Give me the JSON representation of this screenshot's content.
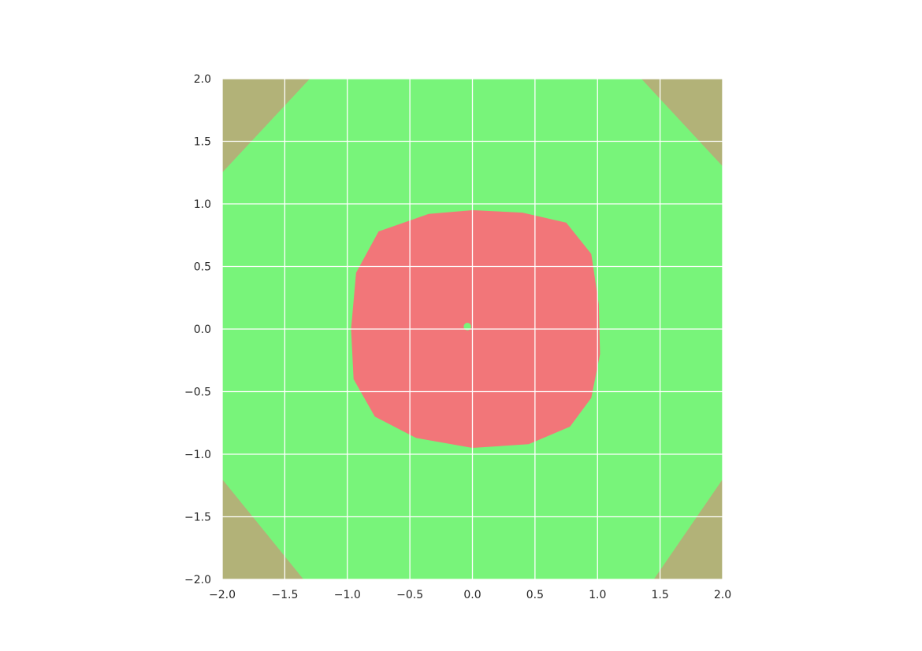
{
  "chart_data": {
    "type": "heatmap",
    "title": "",
    "xlabel": "",
    "ylabel": "",
    "xlim": [
      -2.0,
      2.0
    ],
    "ylim": [
      -2.0,
      2.0
    ],
    "grid": true,
    "x_ticks": [
      -2.0,
      -1.5,
      -1.0,
      -0.5,
      0.0,
      0.5,
      1.0,
      1.5,
      2.0
    ],
    "y_ticks": [
      -2.0,
      -1.5,
      -1.0,
      -0.5,
      0.0,
      0.5,
      1.0,
      1.5,
      2.0
    ],
    "x_tick_labels": [
      "−2.0",
      "−1.5",
      "−1.0",
      "−0.5",
      "0.0",
      "0.5",
      "1.0",
      "1.5",
      "2.0"
    ],
    "y_tick_labels": [
      "−2.0",
      "−1.5",
      "−1.0",
      "−0.5",
      "0.0",
      "0.5",
      "1.0",
      "1.5",
      "2.0"
    ],
    "regions": [
      {
        "color": "#b2b278",
        "description_points": "outer corners",
        "boundary_inner_radius_inf_norm_diag": [
          1.15,
          1.15
        ]
      },
      {
        "color": "#78f47a",
        "boundary": [
          [
            -1.3,
            2.0
          ],
          [
            1.35,
            2.0
          ],
          [
            2.0,
            1.3
          ],
          [
            2.0,
            -1.2
          ],
          [
            1.45,
            -2.0
          ],
          [
            -1.35,
            -2.0
          ],
          [
            -2.0,
            -1.2
          ],
          [
            -2.0,
            1.25
          ]
        ]
      },
      {
        "color": "#f27679",
        "boundary": [
          [
            0.0,
            0.95
          ],
          [
            0.4,
            0.93
          ],
          [
            0.75,
            0.85
          ],
          [
            0.95,
            0.6
          ],
          [
            1.01,
            0.2
          ],
          [
            1.02,
            -0.2
          ],
          [
            0.95,
            -0.55
          ],
          [
            0.78,
            -0.78
          ],
          [
            0.45,
            -0.92
          ],
          [
            0.0,
            -0.95
          ],
          [
            -0.45,
            -0.87
          ],
          [
            -0.78,
            -0.7
          ],
          [
            -0.95,
            -0.4
          ],
          [
            -0.97,
            0.0
          ],
          [
            -0.93,
            0.45
          ],
          [
            -0.75,
            0.78
          ],
          [
            -0.35,
            0.92
          ]
        ]
      },
      {
        "color": "#78f47a",
        "description_points": "center dot",
        "center": [
          -0.04,
          0.02
        ],
        "radius": 0.03
      }
    ]
  }
}
